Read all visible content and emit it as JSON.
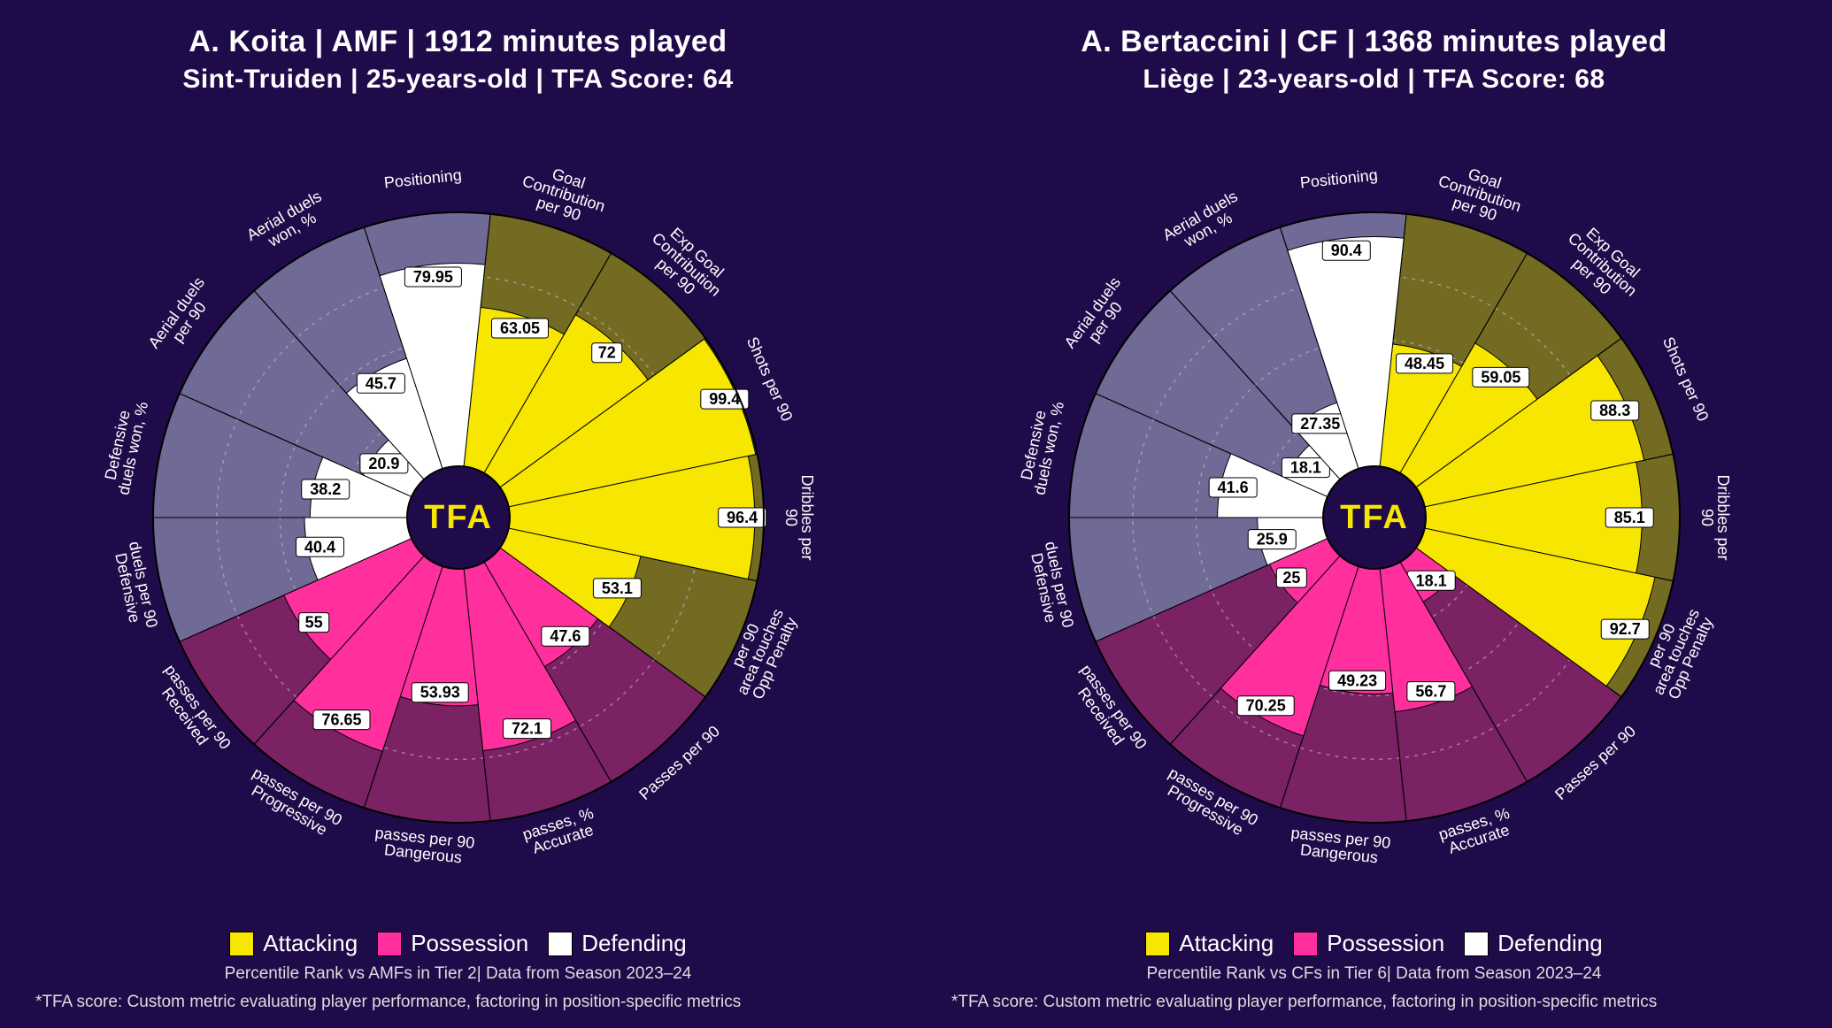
{
  "background_color": "#1f0b4a",
  "hub_label": "TFA",
  "hub_fill": "#1f0b4a",
  "hub_text_color": "#f7e600",
  "chart": {
    "type": "polar-bar",
    "outer_radius": 345,
    "inner_radius": 58,
    "grid_rings": [
      25,
      50,
      75,
      100
    ],
    "grid_color": "#c8c3d6",
    "grid_dash": "4 6",
    "spoke_color": "#555",
    "category_colors": {
      "attacking": {
        "fill": "#f7e600",
        "bg": "#736b22"
      },
      "possession": {
        "fill": "#ff2f9e",
        "bg": "#7a2264"
      },
      "defending": {
        "fill": "#ffffff",
        "bg": "#6f6a96"
      }
    }
  },
  "legend": {
    "items": [
      {
        "label": "Attacking",
        "color": "#f7e600"
      },
      {
        "label": "Possession",
        "color": "#ff2f9e"
      },
      {
        "label": "Defending",
        "color": "#ffffff"
      }
    ]
  },
  "footnote": "*TFA score: Custom metric evaluating player performance, factoring in position-specific metrics",
  "players": [
    {
      "title1": "A. Koita | AMF | 1912 minutes played",
      "title2": "Sint-Truiden | 25-years-old | TFA Score: 64",
      "subline": "Percentile Rank vs AMFs in Tier 2| Data from Season 2023–24",
      "slices": [
        {
          "label": "Goal Contribution per 90",
          "cat": "attacking",
          "value": 63.05
        },
        {
          "label": "Exp Goal Contribution per 90",
          "cat": "attacking",
          "value": 72.0
        },
        {
          "label": "Shots per 90",
          "cat": "attacking",
          "value": 99.4
        },
        {
          "label": "Dribbles per 90",
          "cat": "attacking",
          "value": 96.4
        },
        {
          "label": "Opp Penalty area touches per 90",
          "cat": "attacking",
          "value": 53.1
        },
        {
          "label": "Passes per 90",
          "cat": "possession",
          "value": 47.6
        },
        {
          "label": "Accurate passes, %",
          "cat": "possession",
          "value": 72.1
        },
        {
          "label": "Dangerous passes per 90",
          "cat": "possession",
          "value": 53.93
        },
        {
          "label": "Progressive passes per 90",
          "cat": "possession",
          "value": 76.65
        },
        {
          "label": "Received passes per 90",
          "cat": "possession",
          "value": 55.0
        },
        {
          "label": "Defensive duels per 90",
          "cat": "defending",
          "value": 40.4
        },
        {
          "label": "Defensive duels won, %",
          "cat": "defending",
          "value": 38.2
        },
        {
          "label": "Aerial duels per 90",
          "cat": "defending",
          "value": 20.9
        },
        {
          "label": "Aerial duels won, %",
          "cat": "defending",
          "value": 45.7
        },
        {
          "label": "Positioning",
          "cat": "defending",
          "value": 79.95
        }
      ]
    },
    {
      "title1": "A. Bertaccini | CF | 1368 minutes played",
      "title2": "Liège | 23-years-old | TFA Score: 68",
      "subline": "Percentile Rank vs CFs in Tier 6| Data from Season 2023–24",
      "slices": [
        {
          "label": "Goal Contribution per 90",
          "cat": "attacking",
          "value": 48.45
        },
        {
          "label": "Exp Goal Contribution per 90",
          "cat": "attacking",
          "value": 59.05
        },
        {
          "label": "Shots per 90",
          "cat": "attacking",
          "value": 88.3
        },
        {
          "label": "Dribbles per 90",
          "cat": "attacking",
          "value": 85.1
        },
        {
          "label": "Opp Penalty area touches per 90",
          "cat": "attacking",
          "value": 92.7
        },
        {
          "label": "Passes per 90",
          "cat": "possession",
          "value": 18.1
        },
        {
          "label": "Accurate passes, %",
          "cat": "possession",
          "value": 56.7
        },
        {
          "label": "Dangerous passes per 90",
          "cat": "possession",
          "value": 49.23
        },
        {
          "label": "Progressive passes per 90",
          "cat": "possession",
          "value": 70.25
        },
        {
          "label": "Received passes per 90",
          "cat": "possession",
          "value": 25.0
        },
        {
          "label": "Defensive duels per 90",
          "cat": "defending",
          "value": 25.9
        },
        {
          "label": "Defensive duels won, %",
          "cat": "defending",
          "value": 41.6
        },
        {
          "label": "Aerial duels per 90",
          "cat": "defending",
          "value": 18.1
        },
        {
          "label": "Aerial duels won, %",
          "cat": "defending",
          "value": 27.35
        },
        {
          "label": "Positioning",
          "cat": "defending",
          "value": 90.4
        }
      ]
    }
  ]
}
